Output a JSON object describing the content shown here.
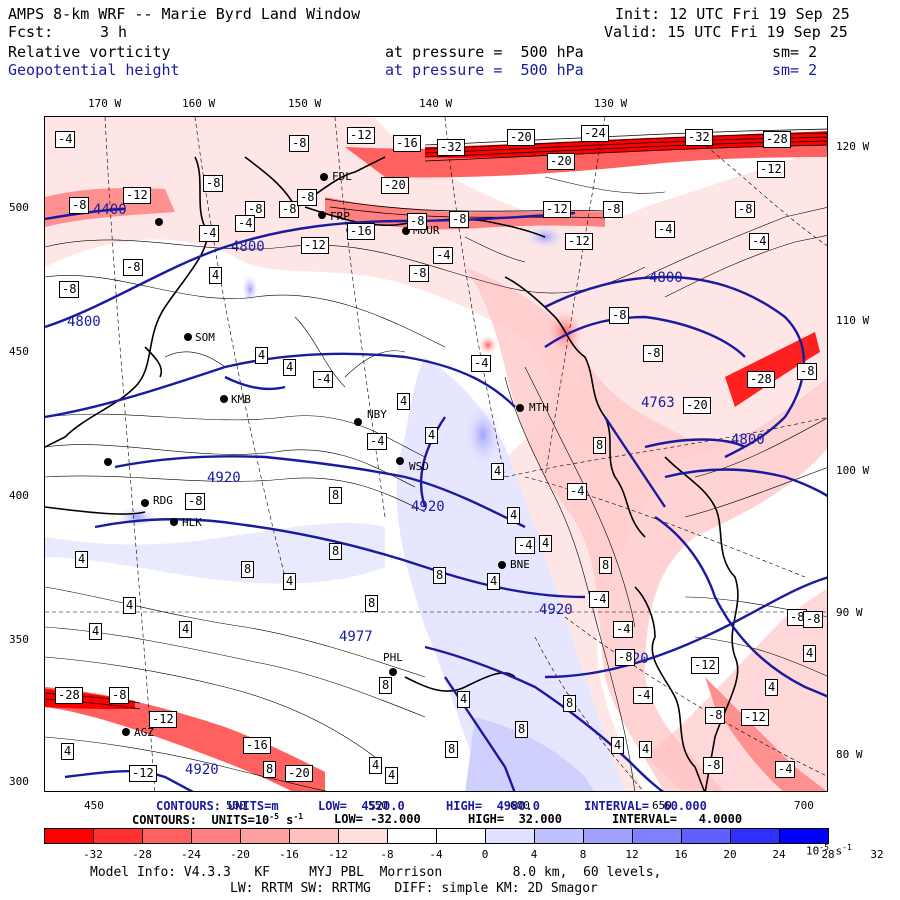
{
  "header": {
    "title": "AMPS 8-km WRF -- Marie Byrd Land Window",
    "init": "Init: 12 UTC Fri 19 Sep 25",
    "fcst_label": "Fcst:",
    "fcst_value": "3 h",
    "valid": "Valid: 15 UTC Fri 19 Sep 25",
    "field1": "Relative vorticity",
    "field1_level": "at pressure =  500 hPa",
    "field1_sm": "sm= 2",
    "field2": "Geopotential height",
    "field2_level": "at pressure =  500 hPa",
    "field2_sm": "sm= 2"
  },
  "axes": {
    "top_lon": [
      "170 W",
      "160 W",
      "150 W",
      "140 W",
      "130 W"
    ],
    "right_lon": [
      "120 W",
      "110 W",
      "100 W",
      "90 W",
      "80 W"
    ],
    "left_y": [
      "500",
      "450",
      "400",
      "350",
      "300"
    ],
    "bottom_x": [
      "450",
      "500",
      "550",
      "600",
      "650",
      "700"
    ]
  },
  "stations": [
    "FDL",
    "FRP",
    "MOUR",
    "SOM",
    "KMB",
    "NBY",
    "WSD",
    "MTH",
    "RDG",
    "HLK",
    "BNE",
    "PHL",
    "AGZ"
  ],
  "height_labels": [
    "4400",
    "4800",
    "4800",
    "4800",
    "4763",
    "4800",
    "4920",
    "4920",
    "4920",
    "4977",
    "4920",
    "4920"
  ],
  "vort_labels": [
    "-4",
    "-8",
    "-8",
    "-12",
    "-16",
    "-32",
    "-20",
    "-24",
    "-32",
    "-28",
    "-20",
    "-12",
    "-8",
    "-12",
    "-8",
    "-4",
    "-8",
    "-4",
    "-8",
    "-16",
    "-12",
    "-8",
    "-20",
    "-8",
    "-12",
    "-8",
    "-4",
    "-8",
    "-4",
    "-8",
    "4",
    "-8",
    "-4",
    "-8",
    "-12",
    "-20",
    "-28",
    "-8",
    "4",
    "4",
    "-4",
    "-4",
    "4",
    "-4",
    "4",
    "4",
    "8",
    "-8",
    "-8",
    "4",
    "-8",
    "8",
    "-4",
    "4",
    "4",
    "-4",
    "8",
    "8",
    "8",
    "4",
    "4",
    "8",
    "8",
    "4",
    "-4",
    "-4",
    "4",
    "8",
    "8",
    "4",
    "4",
    "8",
    "8",
    "-8",
    "4",
    "-12",
    "-8",
    "4",
    "4",
    "-12",
    "-16",
    "-20",
    "8",
    "8",
    "-8",
    "-12",
    "4",
    "8",
    "-8",
    "4",
    "-12",
    "-8",
    "-28",
    "-8",
    "-4",
    "4",
    "4",
    "-4",
    "4"
  ],
  "footer": {
    "contours1_label": "CONTOURS:",
    "contours1_units": "UNITS=m",
    "contours1_low": "LOW=  4520.0",
    "contours1_high": "HIGH=  4980.0",
    "contours1_interval": "INTERVAL=  60.000",
    "contours2": "CONTOURS:  UNITS=10",
    "contours2_exp": "-5",
    "contours2_s": " s",
    "contours2_sexp": "-1",
    "contours2_low": "LOW= -32.000",
    "contours2_high": "HIGH=  32.000",
    "contours2_interval": "INTERVAL=   4.0000",
    "model_info": "Model Info: V4.3.3   KF     MYJ PBL  Morrison         8.0 km,  60 levels,",
    "model_info2": "LW: RRTM SW: RRTMG   DIFF: simple KM: 2D Smagor"
  },
  "colorbar": {
    "labels": [
      "-32",
      "-28",
      "-24",
      "-20",
      "-16",
      "-12",
      "-8",
      "-4",
      "0",
      "4",
      "8",
      "12",
      "16",
      "20",
      "24",
      "28",
      "32"
    ],
    "units": "10",
    "units_exp": "-5",
    "units_s": "s",
    "units_sexp": "-1",
    "colors": [
      "#ff0000",
      "#ff3030",
      "#ff6060",
      "#ff8080",
      "#ffa0a0",
      "#ffc0c0",
      "#ffe0e0",
      "#ffffff",
      "#ffffff",
      "#e0e0ff",
      "#c0c0ff",
      "#a0a0ff",
      "#8080ff",
      "#6060ff",
      "#3030ff",
      "#0000ff"
    ]
  }
}
